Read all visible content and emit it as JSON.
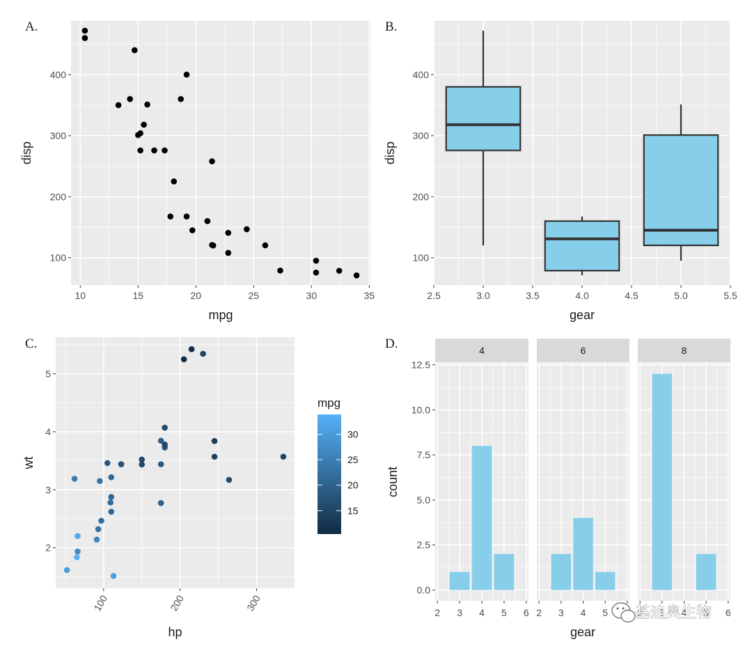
{
  "watermark": {
    "text": "基迪奥生物",
    "icon": "wechat-icon"
  },
  "colors": {
    "panel_bg": "#ebebeb",
    "grid": "#ffffff",
    "fill": "#87ceeb",
    "box_stroke": "#333333",
    "strip_bg": "#d9d9d9",
    "grad_low": "#132b43",
    "grad_high": "#56b1f7"
  },
  "chart_data": [
    {
      "panel_label": "A.",
      "type": "scatter",
      "xlabel": "mpg",
      "ylabel": "disp",
      "xlim": [
        9.2,
        35.1
      ],
      "ylim": [
        55.2,
        488.1
      ],
      "xticks": [
        10,
        15,
        20,
        25,
        30,
        35
      ],
      "yticks": [
        100,
        200,
        300,
        400
      ],
      "points": [
        [
          21,
          160
        ],
        [
          21,
          160
        ],
        [
          22.8,
          108
        ],
        [
          21.4,
          258
        ],
        [
          18.7,
          360
        ],
        [
          18.1,
          225
        ],
        [
          14.3,
          360
        ],
        [
          24.4,
          146.7
        ],
        [
          22.8,
          140.8
        ],
        [
          19.2,
          167.6
        ],
        [
          17.8,
          167.6
        ],
        [
          16.4,
          275.8
        ],
        [
          17.3,
          275.8
        ],
        [
          15.2,
          275.8
        ],
        [
          10.4,
          472
        ],
        [
          10.4,
          460
        ],
        [
          14.7,
          440
        ],
        [
          32.4,
          78.7
        ],
        [
          30.4,
          75.7
        ],
        [
          33.9,
          71.1
        ],
        [
          21.5,
          120.1
        ],
        [
          15.5,
          318
        ],
        [
          15.2,
          304
        ],
        [
          13.3,
          350
        ],
        [
          19.2,
          400
        ],
        [
          27.3,
          79
        ],
        [
          26,
          120.3
        ],
        [
          30.4,
          95.1
        ],
        [
          15.8,
          351
        ],
        [
          19.7,
          145
        ],
        [
          15,
          301
        ],
        [
          21.4,
          121
        ]
      ]
    },
    {
      "panel_label": "B.",
      "type": "box",
      "xlabel": "gear",
      "ylabel": "disp",
      "xlim": [
        2.5,
        5.5
      ],
      "ylim": [
        55.2,
        488.1
      ],
      "xticks": [
        "2.5",
        "3.0",
        "3.5",
        "4.0",
        "4.5",
        "5.0",
        "5.5"
      ],
      "yticks": [
        100,
        200,
        300,
        400
      ],
      "boxes": [
        {
          "x": 3,
          "min": 120.1,
          "q1": 275.8,
          "median": 318,
          "q3": 380,
          "max": 472
        },
        {
          "x": 4,
          "min": 71.1,
          "q1": 78.85,
          "median": 130.9,
          "q3": 160,
          "max": 167.6
        },
        {
          "x": 5,
          "min": 95.1,
          "q1": 120.3,
          "median": 145,
          "q3": 301,
          "max": 351
        }
      ]
    },
    {
      "panel_label": "C.",
      "type": "scatter",
      "xlabel": "hp",
      "ylabel": "wt",
      "xlim": [
        37.35,
        349.65
      ],
      "ylim": [
        1.3,
        5.63
      ],
      "xticks": [
        100,
        200,
        300
      ],
      "yticks": [
        2,
        3,
        4,
        5
      ],
      "color_by": "mpg",
      "legend": {
        "title": "mpg",
        "ticks": [
          15,
          20,
          25,
          30
        ],
        "range": [
          10.4,
          33.9
        ],
        "position": "right"
      },
      "points": [
        [
          110,
          2.62,
          21
        ],
        [
          110,
          2.875,
          21
        ],
        [
          93,
          2.32,
          22.8
        ],
        [
          110,
          3.215,
          21.4
        ],
        [
          175,
          3.44,
          18.7
        ],
        [
          105,
          3.46,
          18.1
        ],
        [
          245,
          3.57,
          14.3
        ],
        [
          62,
          3.19,
          24.4
        ],
        [
          95,
          3.15,
          22.8
        ],
        [
          123,
          3.44,
          19.2
        ],
        [
          123,
          3.44,
          17.8
        ],
        [
          180,
          4.07,
          16.4
        ],
        [
          180,
          3.73,
          17.3
        ],
        [
          180,
          3.78,
          15.2
        ],
        [
          205,
          5.25,
          10.4
        ],
        [
          215,
          5.424,
          10.4
        ],
        [
          230,
          5.345,
          14.7
        ],
        [
          66,
          2.2,
          32.4
        ],
        [
          52,
          1.615,
          30.4
        ],
        [
          65,
          1.835,
          33.9
        ],
        [
          97,
          2.465,
          21.5
        ],
        [
          150,
          3.52,
          15.5
        ],
        [
          150,
          3.435,
          15.2
        ],
        [
          245,
          3.84,
          13.3
        ],
        [
          175,
          3.845,
          19.2
        ],
        [
          66,
          1.935,
          27.3
        ],
        [
          91,
          2.14,
          26
        ],
        [
          113,
          1.513,
          30.4
        ],
        [
          264,
          3.17,
          15.8
        ],
        [
          175,
          2.77,
          19.7
        ],
        [
          335,
          3.57,
          15
        ],
        [
          109,
          2.78,
          21.4
        ]
      ]
    },
    {
      "panel_label": "D.",
      "type": "bar",
      "xlabel": "gear",
      "ylabel": "count",
      "facet_by": "cyl",
      "xlim": [
        1.9,
        6.1
      ],
      "ylim": [
        -0.6,
        12.6
      ],
      "xticks": [
        2,
        3,
        4,
        5,
        6
      ],
      "yticks": [
        "0.0",
        "2.5",
        "5.0",
        "7.5",
        "10.0",
        "12.5"
      ],
      "facets": [
        {
          "label": "4",
          "bars": [
            {
              "x": 3,
              "count": 1
            },
            {
              "x": 4,
              "count": 8
            },
            {
              "x": 5,
              "count": 2
            }
          ]
        },
        {
          "label": "6",
          "bars": [
            {
              "x": 3,
              "count": 2
            },
            {
              "x": 4,
              "count": 4
            },
            {
              "x": 5,
              "count": 1
            }
          ]
        },
        {
          "label": "8",
          "bars": [
            {
              "x": 3,
              "count": 12
            },
            {
              "x": 5,
              "count": 2
            }
          ]
        }
      ]
    }
  ]
}
